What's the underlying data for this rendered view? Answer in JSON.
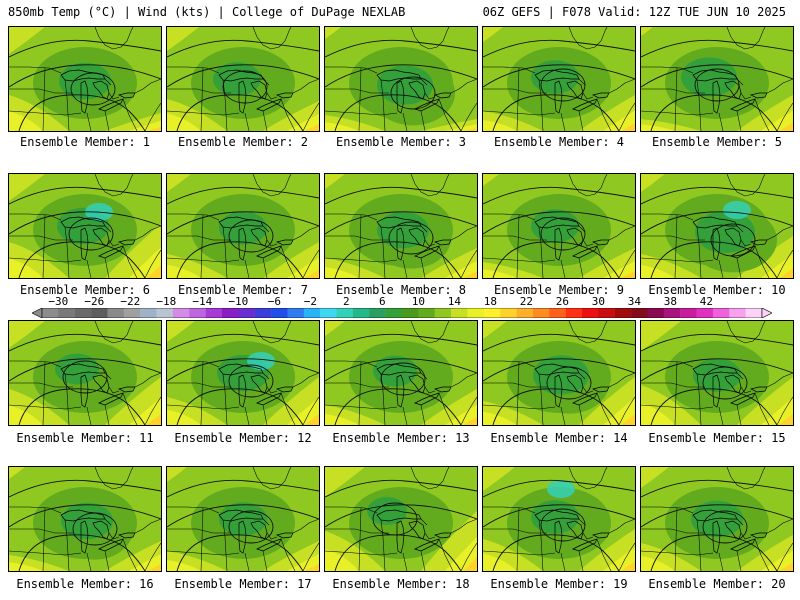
{
  "header": {
    "title": "850mb Temp (°C) | Wind (kts) | College of DuPage NEXLAB",
    "run_info": "06Z GEFS | F078 Valid: 12Z TUE JUN 10 2025"
  },
  "colorbar": {
    "labels": [
      "−30",
      "−26",
      "−22",
      "−18",
      "−14",
      "−10",
      "−6",
      "−2",
      "2",
      "6",
      "10",
      "14",
      "18",
      "22",
      "26",
      "30",
      "34",
      "38",
      "42"
    ],
    "colors": [
      "#8c8c8c",
      "#7a7a7a",
      "#6a6a6a",
      "#5e5e5e",
      "#8a8a8a",
      "#a0a0a0",
      "#9fb3c8",
      "#b8c4d2",
      "#d48be8",
      "#c065e0",
      "#a83bd4",
      "#8a1fc4",
      "#6a2ed0",
      "#3d3ddb",
      "#1f4fe8",
      "#2f7bf0",
      "#28b4f5",
      "#3ed6f0",
      "#35d0b8",
      "#25b888",
      "#2aa060",
      "#34a03a",
      "#4a9a1e",
      "#62ab1e",
      "#8ec820",
      "#c8e024",
      "#e8f028",
      "#fff02a",
      "#ffd22a",
      "#ffb02a",
      "#ff8c22",
      "#ff601a",
      "#ff3014",
      "#ee1010",
      "#c80e0e",
      "#a00c0c",
      "#820c1c",
      "#8a0a52",
      "#a8147c",
      "#c81e9e",
      "#e030c0",
      "#f060dc",
      "#f7a0ee",
      "#fcd2f8"
    ]
  },
  "palette": {
    "light_green": "#8ec820",
    "mid_green": "#62ab1e",
    "dark_green": "#34a03a",
    "yellow_green": "#c8e024",
    "yellow": "#e8f028",
    "orange_yellow": "#ffd22a",
    "teal": "#35d0b8"
  },
  "members": [
    {
      "caption": "Ensemble Member: 1"
    },
    {
      "caption": "Ensemble Member: 2"
    },
    {
      "caption": "Ensemble Member: 3"
    },
    {
      "caption": "Ensemble Member: 4"
    },
    {
      "caption": "Ensemble Member: 5"
    },
    {
      "caption": "Ensemble Member: 6"
    },
    {
      "caption": "Ensemble Member: 7"
    },
    {
      "caption": "Ensemble Member: 8"
    },
    {
      "caption": "Ensemble Member: 9"
    },
    {
      "caption": "Ensemble Member: 10"
    },
    {
      "caption": "Ensemble Member: 11"
    },
    {
      "caption": "Ensemble Member: 12"
    },
    {
      "caption": "Ensemble Member: 13"
    },
    {
      "caption": "Ensemble Member: 14"
    },
    {
      "caption": "Ensemble Member: 15"
    },
    {
      "caption": "Ensemble Member: 16"
    },
    {
      "caption": "Ensemble Member: 17"
    },
    {
      "caption": "Ensemble Member: 18"
    },
    {
      "caption": "Ensemble Member: 19"
    },
    {
      "caption": "Ensemble Member: 20"
    }
  ]
}
